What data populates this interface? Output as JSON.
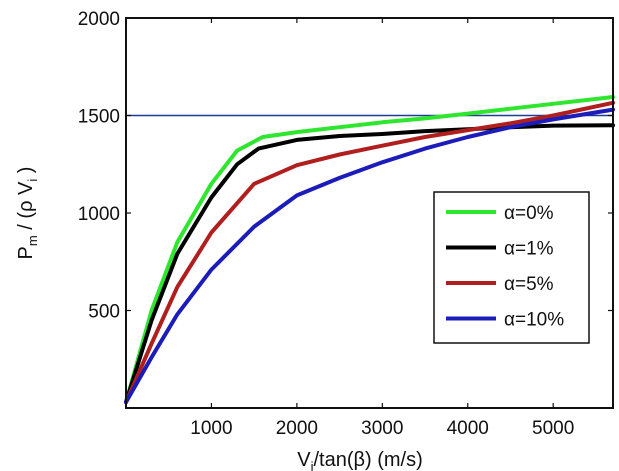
{
  "chart_data": {
    "type": "line",
    "x_axis": {
      "label_main": "V",
      "label_sub": "i",
      "label_rest": "/tan(β) (m/s)",
      "range": [
        0,
        5700
      ],
      "ticks": [
        1000,
        2000,
        3000,
        4000,
        5000
      ],
      "tick_labels": [
        "1000",
        "2000",
        "3000",
        "4000",
        "5000"
      ]
    },
    "y_axis": {
      "label_main": "P",
      "label_sub1": "m",
      "label_mid": " / (ρ V",
      "label_sub2": "i",
      "label_end": " )",
      "range": [
        0,
        2000
      ],
      "ticks": [
        500,
        1000,
        1500,
        2000
      ],
      "tick_labels": [
        "500",
        "1000",
        "1500",
        "2000"
      ]
    },
    "reference_line": {
      "y": 1500,
      "color": "#1f3a93"
    },
    "legend": {
      "placement": "right-center"
    },
    "series": [
      {
        "name": "α=0%",
        "color": "#2ee62e",
        "points": [
          [
            0,
            30
          ],
          [
            300,
            500
          ],
          [
            600,
            850
          ],
          [
            1000,
            1150
          ],
          [
            1300,
            1320
          ],
          [
            1600,
            1390
          ],
          [
            2000,
            1415
          ],
          [
            2500,
            1440
          ],
          [
            3000,
            1465
          ],
          [
            3500,
            1485
          ],
          [
            4000,
            1510
          ],
          [
            4500,
            1535
          ],
          [
            5000,
            1560
          ],
          [
            5700,
            1595
          ]
        ]
      },
      {
        "name": "α=1%",
        "color": "#000000",
        "points": [
          [
            0,
            30
          ],
          [
            300,
            450
          ],
          [
            600,
            790
          ],
          [
            1000,
            1080
          ],
          [
            1300,
            1250
          ],
          [
            1550,
            1330
          ],
          [
            2000,
            1375
          ],
          [
            2500,
            1395
          ],
          [
            3000,
            1405
          ],
          [
            3500,
            1420
          ],
          [
            4000,
            1430
          ],
          [
            4500,
            1440
          ],
          [
            5000,
            1448
          ],
          [
            5700,
            1450
          ]
        ]
      },
      {
        "name": "α=5%",
        "color": "#b01e1e",
        "points": [
          [
            0,
            30
          ],
          [
            300,
            330
          ],
          [
            600,
            620
          ],
          [
            1000,
            900
          ],
          [
            1500,
            1150
          ],
          [
            2000,
            1245
          ],
          [
            2500,
            1300
          ],
          [
            3000,
            1345
          ],
          [
            3500,
            1390
          ],
          [
            4000,
            1425
          ],
          [
            4500,
            1460
          ],
          [
            5000,
            1500
          ],
          [
            5700,
            1565
          ]
        ]
      },
      {
        "name": "α=10%",
        "color": "#1c1cb8",
        "points": [
          [
            0,
            30
          ],
          [
            300,
            260
          ],
          [
            600,
            480
          ],
          [
            1000,
            710
          ],
          [
            1500,
            930
          ],
          [
            2000,
            1090
          ],
          [
            2500,
            1180
          ],
          [
            3000,
            1260
          ],
          [
            3500,
            1330
          ],
          [
            4000,
            1390
          ],
          [
            4500,
            1440
          ],
          [
            5000,
            1480
          ],
          [
            5700,
            1530
          ]
        ]
      }
    ]
  }
}
